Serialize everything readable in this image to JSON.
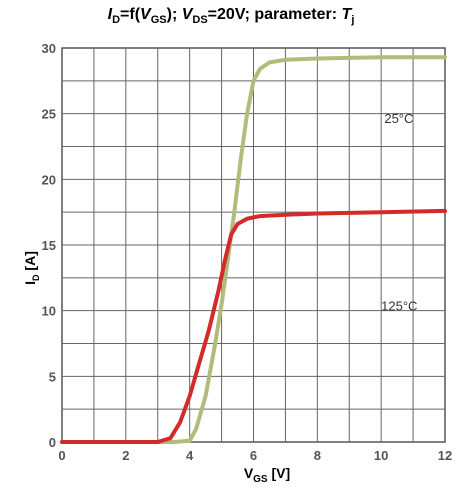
{
  "chart_data": {
    "type": "line",
    "title": {
      "id_symbol": "I",
      "id_sub": "D",
      "f_open": "=f(",
      "vgs_symbol": "V",
      "vgs_sub": "GS",
      "sep": "); ",
      "vds_symbol": "V",
      "vds_sub": "DS",
      "vds_rest": "=20V; parameter: ",
      "tj_symbol": "T",
      "tj_sub": "j"
    },
    "xlabel": {
      "main": "V",
      "sub": "GS",
      "unit": " [V]"
    },
    "ylabel": {
      "main": "I",
      "sub": "D",
      "unit": " [A]"
    },
    "xlim": [
      0,
      12
    ],
    "ylim": [
      0,
      30
    ],
    "xticks": [
      "0",
      "2",
      "4",
      "6",
      "8",
      "10",
      "12"
    ],
    "yticks": [
      "0",
      "5",
      "10",
      "15",
      "20",
      "25",
      "30"
    ],
    "grid": true,
    "series": [
      {
        "name": "25°C",
        "color": "#b2bb7a",
        "x": [
          0,
          3.5,
          4.0,
          4.2,
          4.5,
          4.8,
          5.0,
          5.2,
          5.4,
          5.6,
          5.8,
          6.0,
          6.2,
          6.5,
          7.0,
          8.0,
          10.0,
          12.0
        ],
        "y": [
          0,
          0,
          0.1,
          1.0,
          3.5,
          7.5,
          10.5,
          14.0,
          17.5,
          21.5,
          25.0,
          27.5,
          28.4,
          28.9,
          29.1,
          29.2,
          29.3,
          29.3
        ]
      },
      {
        "name": "125°C",
        "color": "#d42a2a",
        "x": [
          0,
          3.0,
          3.4,
          3.7,
          4.0,
          4.3,
          4.6,
          4.9,
          5.1,
          5.3,
          5.5,
          5.8,
          6.2,
          7.0,
          8.0,
          10.0,
          12.0
        ],
        "y": [
          0,
          0,
          0.3,
          1.5,
          3.5,
          6.0,
          8.5,
          11.5,
          13.8,
          15.8,
          16.6,
          17.0,
          17.2,
          17.3,
          17.4,
          17.5,
          17.6
        ]
      }
    ],
    "annotations": [
      {
        "text": "25°C",
        "x": 10.1,
        "y": 24.3
      },
      {
        "text": "125°C",
        "x": 10.0,
        "y": 10.0
      }
    ]
  }
}
